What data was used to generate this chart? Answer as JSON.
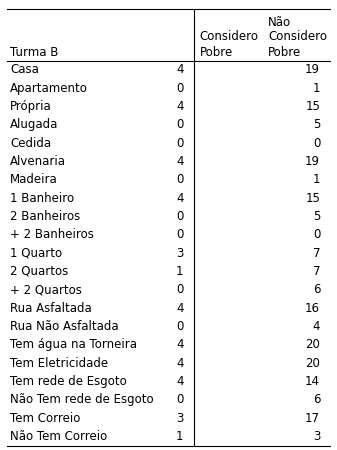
{
  "header_col": "Turma B",
  "col1_h1": "Considero",
  "col1_h2": "Pobre",
  "col2_h1": "Não",
  "col2_h2": "Considero",
  "col2_h3": "Pobre",
  "rows": [
    [
      "Casa",
      "4",
      "19"
    ],
    [
      "Apartamento",
      "0",
      "1"
    ],
    [
      "Própria",
      "4",
      "15"
    ],
    [
      "Alugada",
      "0",
      "5"
    ],
    [
      "Cedida",
      "0",
      "0"
    ],
    [
      "Alvenaria",
      "4",
      "19"
    ],
    [
      "Madeira",
      "0",
      "1"
    ],
    [
      "1 Banheiro",
      "4",
      "15"
    ],
    [
      "2 Banheiros",
      "0",
      "5"
    ],
    [
      "+ 2 Banheiros",
      "0",
      "0"
    ],
    [
      "1 Quarto",
      "3",
      "7"
    ],
    [
      "2 Quartos",
      "1",
      "7"
    ],
    [
      "+ 2 Quartos",
      "0",
      "6"
    ],
    [
      "Rua Asfaltada",
      "4",
      "16"
    ],
    [
      "Rua Não Asfaltada",
      "0",
      "4"
    ],
    [
      "Tem água na Torneira",
      "4",
      "20"
    ],
    [
      "Tem Eletricidade",
      "4",
      "20"
    ],
    [
      "Tem rede de Esgoto",
      "4",
      "14"
    ],
    [
      "Não Tem rede de Esgoto",
      "0",
      "6"
    ],
    [
      "Tem Correio",
      "3",
      "17"
    ],
    [
      "Não Tem Correio",
      "1",
      "3"
    ]
  ],
  "bg_color": "#ffffff",
  "text_color": "#000000",
  "font_size": 8.5,
  "line_color": "#000000",
  "fig_width": 3.37,
  "fig_height": 4.5,
  "dpi": 100
}
